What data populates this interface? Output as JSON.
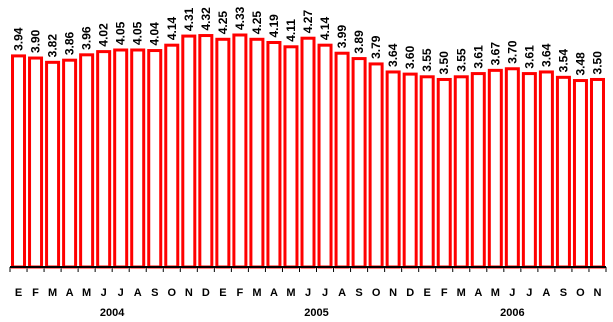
{
  "chart_data": {
    "type": "bar",
    "title": "",
    "xlabel": "",
    "ylabel": "",
    "categories": [
      "E",
      "F",
      "M",
      "A",
      "M",
      "J",
      "J",
      "A",
      "S",
      "O",
      "N",
      "D",
      "E",
      "F",
      "M",
      "A",
      "M",
      "J",
      "J",
      "A",
      "S",
      "O",
      "N",
      "D",
      "E",
      "F",
      "M",
      "A",
      "M",
      "J",
      "J",
      "A",
      "S",
      "O",
      "N"
    ],
    "values": [
      3.94,
      3.9,
      3.82,
      3.86,
      3.96,
      4.02,
      4.05,
      4.05,
      4.04,
      4.14,
      4.31,
      4.32,
      4.25,
      4.33,
      4.25,
      4.19,
      4.11,
      4.27,
      4.14,
      3.99,
      3.89,
      3.79,
      3.64,
      3.6,
      3.55,
      3.5,
      3.55,
      3.61,
      3.67,
      3.7,
      3.61,
      3.64,
      3.54,
      3.48,
      3.5
    ],
    "value_labels": [
      "3.94",
      "3.90",
      "3.82",
      "3.86",
      "3.96",
      "4.02",
      "4.05",
      "4.05",
      "4.04",
      "4.14",
      "4.31",
      "4.32",
      "4.25",
      "4.33",
      "4.25",
      "4.19",
      "4.11",
      "4.27",
      "4.14",
      "3.99",
      "3.89",
      "3.79",
      "3.64",
      "3.60",
      "3.55",
      "3.50",
      "3.55",
      "3.61",
      "3.67",
      "3.70",
      "3.61",
      "3.64",
      "3.54",
      "3.48",
      "3.50"
    ],
    "years": [
      {
        "label": "2004",
        "start": 0,
        "end": 11
      },
      {
        "label": "2005",
        "start": 12,
        "end": 23
      },
      {
        "label": "2006",
        "start": 24,
        "end": 34
      }
    ],
    "ylim": [
      0,
      4.6
    ],
    "grid": false,
    "legend": "none",
    "bar_color": "#ff0000",
    "bar_fill": "#ffffff",
    "axis_color": "#000000"
  }
}
